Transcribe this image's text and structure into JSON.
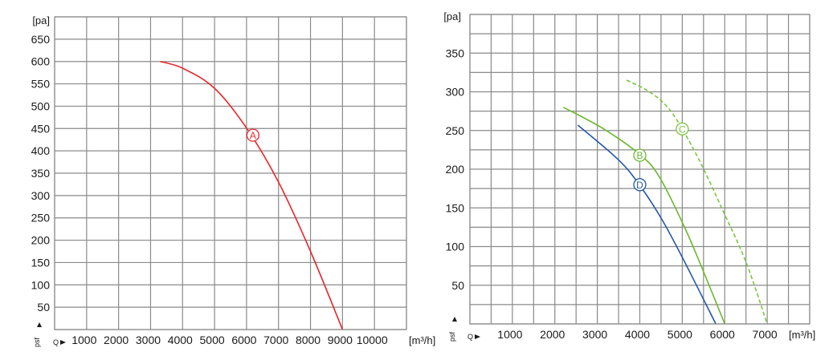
{
  "chart_data": [
    {
      "type": "line",
      "title": "",
      "ylabel": "[pa]",
      "xlabel": "[m³/h]",
      "y_axis_symbol": "psf",
      "x_axis_symbol": "Q",
      "xlim": [
        0,
        11000
      ],
      "ylim": [
        0,
        700
      ],
      "x_grid_step": 1000,
      "y_grid_step": 50,
      "x_ticks": [
        1000,
        2000,
        3000,
        4000,
        5000,
        6000,
        7000,
        8000,
        9000,
        10000
      ],
      "y_ticks": [
        50,
        100,
        150,
        200,
        250,
        300,
        350,
        400,
        450,
        500,
        550,
        600,
        650
      ],
      "grid": true,
      "series": [
        {
          "name": "A",
          "color": "#e8262a",
          "dashed": false,
          "x": [
            3300,
            4000,
            5000,
            6000,
            7000,
            8000,
            9000
          ],
          "y": [
            600,
            585,
            540,
            451,
            330,
            175,
            0
          ],
          "label_at": [
            6200,
            435
          ]
        }
      ]
    },
    {
      "type": "line",
      "title": "",
      "ylabel": "[pa]",
      "xlabel": "[m³/h]",
      "y_axis_symbol": "psf",
      "x_axis_symbol": "Q",
      "xlim": [
        0,
        8000
      ],
      "ylim": [
        0,
        400
      ],
      "x_grid_step": 500,
      "y_grid_step": 25,
      "x_ticks": [
        1000,
        2000,
        3000,
        4000,
        5000,
        6000,
        7000
      ],
      "y_ticks": [
        50,
        100,
        150,
        200,
        250,
        300,
        350
      ],
      "grid": true,
      "series": [
        {
          "name": "B",
          "color": "#6ab82f",
          "dashed": false,
          "x": [
            2200,
            3120,
            4000,
            4450,
            5020,
            5460,
            6000
          ],
          "y": [
            280,
            253,
            219,
            191,
            129,
            73,
            0
          ],
          "label_at": [
            4000,
            218
          ]
        },
        {
          "name": "C",
          "color": "#7cc443",
          "dashed": true,
          "x": [
            3690,
            4200,
            4640,
            5000,
            5460,
            5960,
            6500,
            7000
          ],
          "y": [
            315,
            301,
            281,
            252,
            205,
            146,
            80,
            0
          ],
          "label_at": [
            5000,
            252
          ]
        },
        {
          "name": "D",
          "color": "#2356a8",
          "dashed": false,
          "x": [
            2540,
            3500,
            4000,
            4510,
            5020,
            5790
          ],
          "y": [
            257,
            212,
            179,
            136,
            84,
            0
          ],
          "label_at": [
            4000,
            180
          ]
        }
      ]
    }
  ]
}
